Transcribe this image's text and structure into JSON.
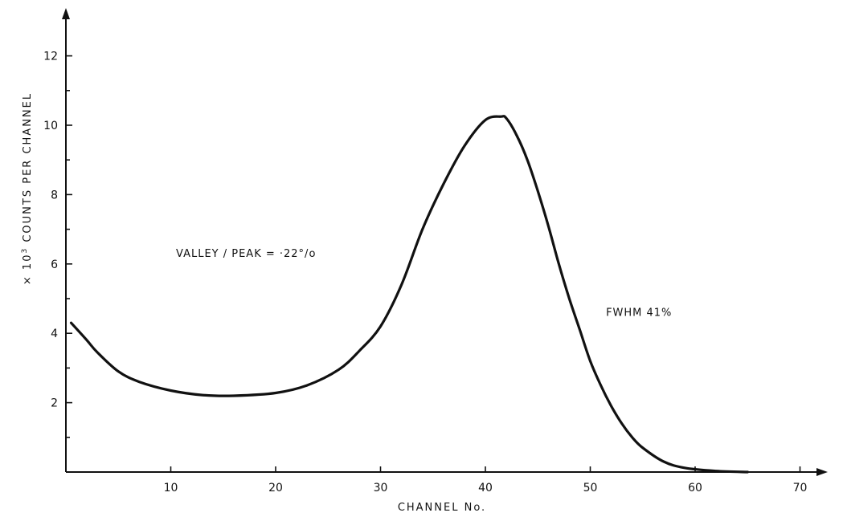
{
  "chart_data": {
    "type": "line",
    "xlabel": "CHANNEL No.",
    "ylabel_prefix": "× 10",
    "ylabel_exponent": "3",
    "ylabel_rest": " COUNTS PER CHANNEL",
    "xlim": [
      0,
      72
    ],
    "ylim": [
      0,
      13
    ],
    "x_ticks": [
      10,
      20,
      30,
      40,
      50,
      60,
      70
    ],
    "y_ticks": [
      2,
      4,
      6,
      8,
      10,
      12
    ],
    "y_minor_ticks": [
      1,
      3,
      5,
      7,
      9,
      11
    ],
    "grid": false,
    "annotations": [
      {
        "text": "VALLEY / PEAK  = ·22°/o",
        "x": 10.5,
        "y": 6.2
      },
      {
        "text": "FWHM  41%",
        "x": 51.5,
        "y": 4.5
      }
    ],
    "series": [
      {
        "x": [
          0.5,
          2,
          3,
          5,
          7,
          10,
          13,
          16,
          20,
          23,
          26,
          28,
          30,
          32,
          34,
          36,
          38,
          40,
          41.5,
          42,
          43,
          44,
          45,
          46,
          47,
          48,
          49,
          50,
          51,
          52,
          53,
          54,
          55,
          57,
          59,
          62,
          65
        ],
        "values": [
          4.3,
          3.8,
          3.45,
          2.9,
          2.6,
          2.35,
          2.22,
          2.2,
          2.28,
          2.5,
          2.95,
          3.5,
          4.2,
          5.4,
          7.0,
          8.3,
          9.4,
          10.15,
          10.25,
          10.2,
          9.7,
          9.0,
          8.1,
          7.1,
          6.0,
          5.0,
          4.1,
          3.2,
          2.5,
          1.9,
          1.4,
          1.0,
          0.7,
          0.3,
          0.12,
          0.03,
          0.0
        ]
      }
    ]
  }
}
